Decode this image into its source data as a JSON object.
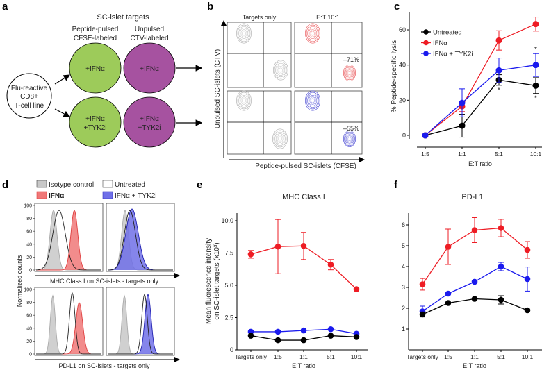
{
  "panel_labels": {
    "a": "a",
    "b": "b",
    "c": "c",
    "d": "d",
    "e": "e",
    "f": "f"
  },
  "panel_a": {
    "title": "SC-islet targets",
    "col1": [
      "Peptide-pulsed",
      "CFSE-labeled"
    ],
    "col2": [
      "Unpulsed",
      "CTV-labeled"
    ],
    "tcell": [
      "Flu-reactive",
      "CD8+",
      "T-cell line"
    ],
    "row1_label": "+IFNα",
    "row2_label": [
      "+IFNα",
      "+TYK2i"
    ],
    "colors": {
      "peptide_pulsed": "#9dcb5a",
      "unpulsed": "#a652a0"
    }
  },
  "panel_b": {
    "col_titles": [
      "Targets only",
      "E:T 10:1"
    ],
    "xlabel": "Peptide-pulsed SC-islets (CFSE)",
    "ylabel": "Unpulsed SC-islets (CTV)",
    "percent_ifna": "–71%",
    "percent_tyk2i": "–55%",
    "colors": {
      "targets_only": "#a9a9a9",
      "ifna": "#e8474a",
      "tyk2i": "#3a3ad0"
    }
  },
  "panel_d": {
    "legend": [
      "Isotype control",
      "Untreated",
      "IFNα",
      "IFNα + TYK2i"
    ],
    "ylabel": "Normalized counts",
    "xlabel_top": "MHC Class I on SC-islets - targets only",
    "xlabel_bottom": "PD-L1 on SC-islets - targets only",
    "yticks": [
      "0",
      "20",
      "40",
      "60",
      "80",
      "100"
    ],
    "colors": {
      "isotype": "#c8c8c8",
      "untreated": "#ffffff",
      "ifna": "#f07878",
      "tyk2i": "#7070e8"
    }
  },
  "chart_data": [
    {
      "panel": "c",
      "type": "line",
      "title": "",
      "xlabel": "E:T ratio",
      "ylabel": "% Peptide-specific lysis",
      "categories": [
        "1:5",
        "1:1",
        "5:1",
        "10:1"
      ],
      "yticks": [
        "0",
        "20",
        "40",
        "60"
      ],
      "ylim": [
        0,
        70
      ],
      "legend": "top-left",
      "series": [
        {
          "name": "Untreated",
          "color": "#000000",
          "values": [
            0,
            5.5,
            31.5,
            28.3
          ],
          "errors": [
            0,
            6.5,
            3,
            4.5
          ]
        },
        {
          "name": "IFNα",
          "color": "#ee1c24",
          "values": [
            0,
            16.5,
            54,
            63.3
          ],
          "errors": [
            0,
            3,
            5.5,
            4
          ]
        },
        {
          "name": "IFNα + TYK2i",
          "color": "#1a1aee",
          "values": [
            0,
            18.5,
            37,
            40
          ],
          "errors": [
            0,
            8,
            7,
            6.5
          ]
        }
      ],
      "annotations": [
        {
          "text": "*",
          "series": "Untreated",
          "category": "5:1"
        },
        {
          "text": "*",
          "series": "Untreated",
          "category": "10:1"
        },
        {
          "text": "*",
          "series": "IFNα + TYK2i",
          "category": "10:1"
        }
      ]
    },
    {
      "panel": "e",
      "type": "line",
      "title": "MHC Class I",
      "xlabel": "E:T ratio",
      "ylabel": [
        "Mean fluorescence intensity",
        "on SC-islet targets (x10³)"
      ],
      "categories": [
        "Targets only",
        "1:5",
        "1:1",
        "5:1",
        "10:1"
      ],
      "yticks": [
        "0",
        "2.5",
        "5.0",
        "7.5",
        "10.0"
      ],
      "ylim": [
        0,
        10.5
      ],
      "series": [
        {
          "color": "#ee1c24",
          "values": [
            7.4,
            8.0,
            8.05,
            6.6,
            4.7
          ],
          "errors": [
            0.3,
            2.1,
            1.05,
            0.4,
            0
          ]
        },
        {
          "color": "#1a1aee",
          "values": [
            1.4,
            1.4,
            1.5,
            1.6,
            1.25
          ],
          "errors": [
            0,
            0,
            0,
            0,
            0
          ]
        },
        {
          "color": "#000000",
          "values": [
            1.1,
            0.75,
            0.75,
            1.1,
            1.0
          ],
          "errors": [
            0,
            0,
            0,
            0,
            0
          ]
        }
      ]
    },
    {
      "panel": "f",
      "type": "line",
      "title": "PD-L1",
      "xlabel": "E:T ratio",
      "ylabel": "",
      "categories": [
        "Targets only",
        "1:5",
        "1:1",
        "5:1",
        "10:1"
      ],
      "yticks": [
        "1",
        "2",
        "3",
        "4",
        "5",
        "6"
      ],
      "ylim": [
        0,
        6.5
      ],
      "series": [
        {
          "color": "#ee1c24",
          "values": [
            3.15,
            4.95,
            5.75,
            5.85,
            4.8
          ],
          "errors": [
            0.28,
            0.85,
            0.6,
            0.42,
            0.4
          ]
        },
        {
          "color": "#1a1aee",
          "values": [
            1.85,
            2.7,
            3.27,
            4.0,
            3.4
          ],
          "errors": [
            0.25,
            0,
            0,
            0.2,
            0.58
          ]
        },
        {
          "color": "#000000",
          "values": [
            1.7,
            2.25,
            2.45,
            2.4,
            1.9
          ],
          "errors": [
            0.12,
            0,
            0,
            0.2,
            0
          ]
        }
      ]
    }
  ]
}
